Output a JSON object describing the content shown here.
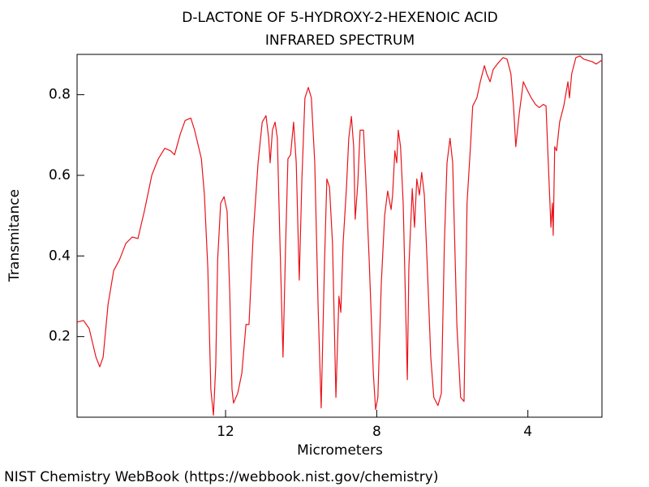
{
  "chart_data": {
    "type": "line",
    "title": "D-LACTONE OF 5-HYDROXY-2-HEXENOIC ACID",
    "subtitle": "INFRARED SPECTRUM",
    "x_label": "Micrometers",
    "y_label": "Transmitance",
    "source": "NIST Chemistry WebBook (https://webbook.nist.gov/chemistry)",
    "color": "#e8141b",
    "xlim": [
      15.93,
      2.04
    ],
    "ylim": [
      0,
      0.9
    ],
    "xticks": [
      12,
      8,
      4
    ],
    "yticks": [
      0.2,
      0.4,
      0.6,
      0.8
    ],
    "x": [
      15.93,
      15.76,
      15.61,
      15.43,
      15.33,
      15.24,
      15.11,
      14.96,
      14.81,
      14.64,
      14.47,
      14.32,
      14.15,
      13.95,
      13.78,
      13.61,
      13.46,
      13.35,
      13.2,
      13.07,
      12.92,
      12.82,
      12.64,
      12.56,
      12.47,
      12.39,
      12.32,
      12.26,
      12.21,
      12.13,
      12.04,
      11.96,
      11.89,
      11.83,
      11.79,
      11.68,
      11.57,
      11.46,
      11.38,
      11.27,
      11.14,
      11.03,
      10.93,
      10.86,
      10.82,
      10.76,
      10.69,
      10.63,
      10.56,
      10.48,
      10.41,
      10.35,
      10.28,
      10.2,
      10.13,
      10.05,
      9.98,
      9.9,
      9.81,
      9.73,
      9.64,
      9.55,
      9.47,
      9.38,
      9.32,
      9.25,
      9.17,
      9.08,
      9.0,
      8.95,
      8.89,
      8.8,
      8.74,
      8.67,
      8.61,
      8.57,
      8.5,
      8.44,
      8.35,
      8.29,
      8.2,
      8.09,
      8.03,
      7.97,
      7.88,
      7.79,
      7.71,
      7.62,
      7.58,
      7.52,
      7.47,
      7.43,
      7.37,
      7.3,
      7.19,
      7.15,
      7.06,
      7.0,
      6.94,
      6.87,
      6.81,
      6.74,
      6.66,
      6.57,
      6.49,
      6.38,
      6.29,
      6.21,
      6.14,
      6.06,
      5.99,
      5.88,
      5.78,
      5.69,
      5.61,
      5.52,
      5.46,
      5.35,
      5.26,
      5.15,
      5.09,
      5.0,
      4.92,
      4.81,
      4.66,
      4.55,
      4.45,
      4.38,
      4.32,
      4.23,
      4.12,
      4.02,
      3.91,
      3.8,
      3.7,
      3.59,
      3.52,
      3.46,
      3.39,
      3.35,
      3.33,
      3.29,
      3.24,
      3.16,
      3.05,
      2.94,
      2.9,
      2.84,
      2.73,
      2.62,
      2.52,
      2.3,
      2.19,
      2.04
    ],
    "values": [
      0.236,
      0.24,
      0.22,
      0.149,
      0.125,
      0.149,
      0.28,
      0.364,
      0.39,
      0.431,
      0.447,
      0.443,
      0.511,
      0.601,
      0.641,
      0.667,
      0.661,
      0.651,
      0.702,
      0.736,
      0.742,
      0.712,
      0.641,
      0.551,
      0.37,
      0.069,
      0.005,
      0.129,
      0.39,
      0.531,
      0.547,
      0.511,
      0.31,
      0.069,
      0.035,
      0.059,
      0.109,
      0.23,
      0.23,
      0.451,
      0.631,
      0.732,
      0.748,
      0.692,
      0.631,
      0.712,
      0.732,
      0.692,
      0.431,
      0.149,
      0.431,
      0.641,
      0.651,
      0.732,
      0.631,
      0.34,
      0.591,
      0.792,
      0.818,
      0.792,
      0.631,
      0.27,
      0.023,
      0.39,
      0.591,
      0.571,
      0.431,
      0.049,
      0.3,
      0.26,
      0.431,
      0.571,
      0.692,
      0.746,
      0.671,
      0.491,
      0.581,
      0.712,
      0.712,
      0.591,
      0.39,
      0.109,
      0.019,
      0.049,
      0.33,
      0.501,
      0.561,
      0.515,
      0.551,
      0.661,
      0.631,
      0.712,
      0.671,
      0.531,
      0.093,
      0.37,
      0.567,
      0.471,
      0.591,
      0.551,
      0.607,
      0.551,
      0.37,
      0.149,
      0.049,
      0.029,
      0.059,
      0.431,
      0.631,
      0.692,
      0.631,
      0.23,
      0.049,
      0.039,
      0.531,
      0.671,
      0.772,
      0.792,
      0.832,
      0.872,
      0.852,
      0.832,
      0.862,
      0.876,
      0.892,
      0.888,
      0.852,
      0.772,
      0.671,
      0.752,
      0.832,
      0.812,
      0.792,
      0.776,
      0.768,
      0.776,
      0.772,
      0.631,
      0.471,
      0.531,
      0.451,
      0.671,
      0.661,
      0.732,
      0.772,
      0.832,
      0.792,
      0.852,
      0.892,
      0.896,
      0.888,
      0.882,
      0.876,
      0.886
    ]
  }
}
